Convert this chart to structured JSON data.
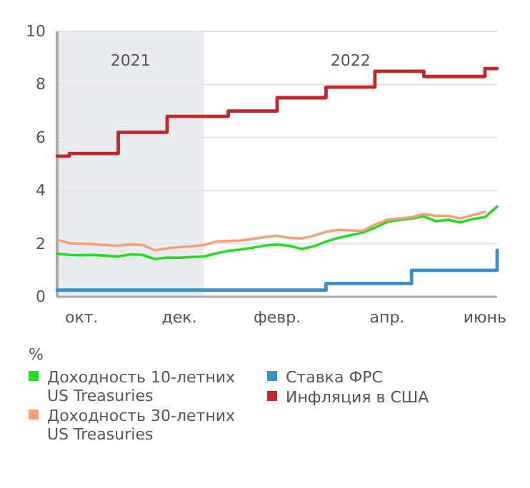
{
  "chart_data": {
    "type": "line",
    "ylabel": "%",
    "ylim": [
      0,
      10
    ],
    "yticks": [
      0,
      2,
      4,
      6,
      8,
      10
    ],
    "categories": [
      null,
      null,
      "окт.",
      null,
      null,
      null,
      null,
      null,
      null,
      null,
      "дек.",
      null,
      null,
      null,
      null,
      null,
      null,
      null,
      "февр.",
      null,
      null,
      null,
      null,
      null,
      null,
      null,
      null,
      "апр.",
      null,
      null,
      null,
      null,
      null,
      null,
      null,
      "июнь",
      null
    ],
    "grid": "y",
    "legend": "bottom",
    "annotations": [
      "2021",
      "2022"
    ],
    "series": [
      {
        "name": "Доходность 10-летних US Treasuries",
        "color": "#22dd22",
        "values": [
          1.62,
          1.58,
          1.57,
          1.58,
          1.55,
          1.52,
          1.6,
          1.58,
          1.42,
          1.48,
          1.47,
          1.5,
          1.52,
          1.63,
          1.73,
          1.78,
          1.85,
          1.93,
          1.97,
          1.92,
          1.8,
          1.9,
          2.08,
          2.22,
          2.32,
          2.42,
          2.6,
          2.82,
          2.9,
          2.95,
          3.03,
          2.85,
          2.9,
          2.8,
          2.93,
          3.0,
          3.4
        ]
      },
      {
        "name": "Доходность 30-летних US Treasuries",
        "color": "#f4a07a",
        "values": [
          2.15,
          2.02,
          2.0,
          1.98,
          1.95,
          1.92,
          1.98,
          1.95,
          1.75,
          1.83,
          1.87,
          1.9,
          1.95,
          2.08,
          2.1,
          2.12,
          2.18,
          2.25,
          2.3,
          2.22,
          2.2,
          2.3,
          2.45,
          2.52,
          2.5,
          2.48,
          2.72,
          2.9,
          2.95,
          3.0,
          3.12,
          3.05,
          3.05,
          2.95,
          3.08,
          3.2,
          null
        ]
      },
      {
        "name": "Ставка ФРС",
        "color": "#3a90c8",
        "type": "step",
        "values": [
          0.25,
          0.25,
          0.25,
          0.25,
          0.25,
          0.25,
          0.25,
          0.25,
          0.25,
          0.25,
          0.25,
          0.25,
          0.25,
          0.25,
          0.25,
          0.25,
          0.25,
          0.25,
          0.25,
          0.25,
          0.25,
          0.25,
          0.5,
          0.5,
          0.5,
          0.5,
          0.5,
          0.5,
          0.5,
          1.0,
          1.0,
          1.0,
          1.0,
          1.0,
          1.0,
          1.0,
          1.75
        ]
      },
      {
        "name": "Инфляция в США",
        "color": "#c0282c",
        "type": "step",
        "values": [
          5.3,
          5.4,
          5.4,
          5.4,
          5.4,
          6.2,
          6.2,
          6.2,
          6.2,
          6.8,
          6.8,
          6.8,
          6.8,
          6.8,
          7.0,
          7.0,
          7.0,
          7.0,
          7.5,
          7.5,
          7.5,
          7.5,
          7.9,
          7.9,
          7.9,
          7.9,
          8.5,
          8.5,
          8.5,
          8.5,
          8.3,
          8.3,
          8.3,
          8.3,
          8.3,
          8.6,
          8.6
        ]
      }
    ]
  }
}
